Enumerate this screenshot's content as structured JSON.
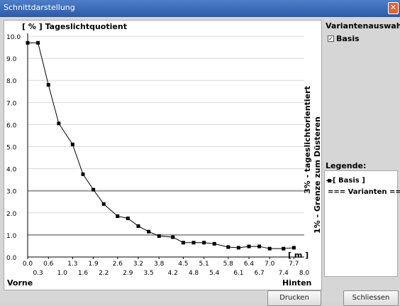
{
  "window": {
    "title": "Schnittdarstellung",
    "close_glyph": "✕"
  },
  "chart_data": {
    "type": "line",
    "title": "[ % ] Tageslichtquotient",
    "xlabel": "[ m ]",
    "x_left_label": "Vorne",
    "x_right_label": "Hinten",
    "ylim": [
      0,
      10
    ],
    "xlim": [
      0,
      8
    ],
    "y_ticks": [
      "0.0",
      "1.0",
      "2.0",
      "3.0",
      "4.0",
      "5.0",
      "6.0",
      "7.0",
      "8.0",
      "9.0",
      "10.0"
    ],
    "x_ticks_upper": [
      "0.0",
      "0.6",
      "1.3",
      "1.9",
      "2.6",
      "3.2",
      "3.8",
      "4.5",
      "5.1",
      "5.8",
      "6.4",
      "7.0",
      "7.7"
    ],
    "x_ticks_lower": [
      "0.3",
      "1.0",
      "1.6",
      "2.2",
      "2.9",
      "3.5",
      "4.2",
      "4.8",
      "5.4",
      "6.1",
      "6.7",
      "7.4",
      "8.0"
    ],
    "reference_lines": [
      {
        "y": 3.0,
        "label": "3% - tageslichtorientiert"
      },
      {
        "y": 1.0,
        "label": "1% - Grenze zum Düsteren"
      }
    ],
    "series": [
      {
        "name": "[ Basis ]",
        "x": [
          0.0,
          0.3,
          0.6,
          0.9,
          1.3,
          1.6,
          1.9,
          2.2,
          2.6,
          2.9,
          3.2,
          3.5,
          3.8,
          4.2,
          4.5,
          4.8,
          5.1,
          5.4,
          5.8,
          6.1,
          6.4,
          6.7,
          7.0,
          7.4,
          7.7
        ],
        "y": [
          9.7,
          9.7,
          7.8,
          6.05,
          5.1,
          3.75,
          3.05,
          2.4,
          1.85,
          1.75,
          1.4,
          1.15,
          0.95,
          0.9,
          0.65,
          0.65,
          0.65,
          0.6,
          0.45,
          0.42,
          0.48,
          0.48,
          0.38,
          0.38,
          0.42
        ]
      }
    ]
  },
  "variants": {
    "title": "Variantenauswahl:",
    "items": [
      {
        "label": "Basis",
        "checked": true,
        "check_glyph": "✓"
      }
    ]
  },
  "legend": {
    "title": "Legende:",
    "entries": [
      "[ Basis ]",
      "=== Varianten ==="
    ]
  },
  "buttons": {
    "print_label": "Drucken",
    "close_label": "Schliessen"
  }
}
